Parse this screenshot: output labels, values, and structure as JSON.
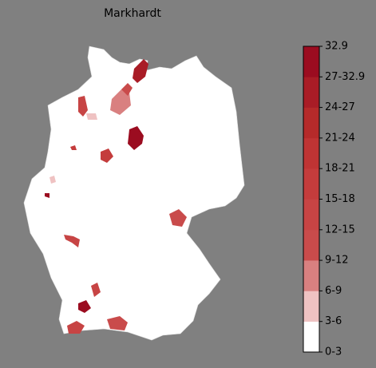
{
  "title": "Markhardt",
  "colorbar": {
    "ticks": [
      "0-3",
      "3-6",
      "6-9",
      "9-12",
      "12-15",
      "15-18",
      "18-21",
      "21-24",
      "24-27",
      "27-32.9",
      "32.9"
    ],
    "colors": [
      "#ffffff",
      "#efc2c2",
      "#d98080",
      "#c94b4b",
      "#c74444",
      "#c43c3c",
      "#bf3434",
      "#b52a2a",
      "#a91c26",
      "#9b0c20"
    ]
  }
}
